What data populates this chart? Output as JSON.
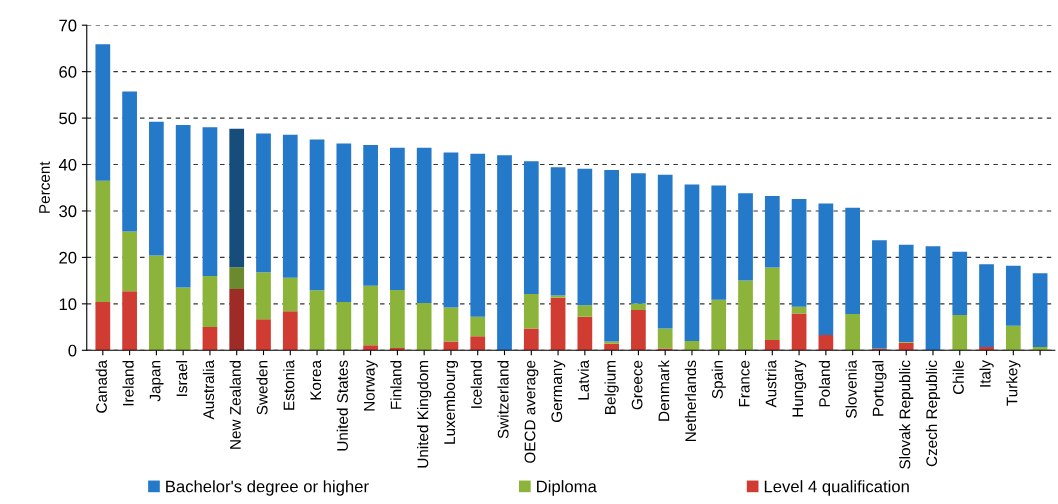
{
  "chart_data": {
    "type": "bar",
    "stacked": true,
    "ylabel": "Percent",
    "categories": [
      "Canada",
      "Ireland",
      "Japan",
      "Israel",
      "Australia",
      "New Zealand",
      "Sweden",
      "Estonia",
      "Korea",
      "United States",
      "Norway",
      "Finland",
      "United Kingdom",
      "Luxembourg",
      "Iceland",
      "Switzerland",
      "OECD average",
      "Germany",
      "Latvia",
      "Belgium",
      "Greece",
      "Denmark",
      "Netherlands",
      "Spain",
      "France",
      "Austria",
      "Hungary",
      "Poland",
      "Slovenia",
      "Portugal",
      "Slovak Republic",
      "Czech Republic",
      "Chile",
      "Italy",
      "Turkey",
      null
    ],
    "series": [
      {
        "name": "Level 4 qualification",
        "color": "#d03b32",
        "colors": [
          "#d03b32",
          "#d03b32",
          "#d03b32",
          "#d03b32",
          "#d03b32",
          "#9e2b26",
          "#d03b32",
          "#d03b32",
          "#d03b32",
          "#d03b32",
          "#d03b32",
          "#d03b32",
          "#d03b32",
          "#d03b32",
          "#d03b32",
          "#d03b32",
          "#d03b32",
          "#d03b32",
          "#d03b32",
          "#d03b32",
          "#d03b32",
          "#d03b32",
          "#d03b32",
          "#d03b32",
          "#d03b32",
          "#d03b32",
          "#d03b32",
          "#d03b32",
          "#d03b32",
          "#d03b32",
          "#d03b32",
          "#d03b32",
          "#d03b32",
          "#d03b32",
          "#d03b32",
          "#d03b32"
        ],
        "values": [
          10.4,
          12.7,
          0,
          0,
          5.0,
          13.2,
          6.7,
          8.4,
          0,
          0,
          1.1,
          0.5,
          0,
          1.9,
          3.0,
          0,
          4.7,
          11.3,
          7.2,
          1.4,
          8.7,
          0.4,
          0,
          0,
          0,
          2.2,
          7.9,
          3.3,
          0,
          0.4,
          1.6,
          0,
          0,
          0.7,
          0,
          0
        ]
      },
      {
        "name": "Diploma",
        "color": "#8cb43a",
        "colors": [
          "#8cb43a",
          "#8cb43a",
          "#8cb43a",
          "#8cb43a",
          "#8cb43a",
          "#6b8a2d",
          "#8cb43a",
          "#8cb43a",
          "#8cb43a",
          "#8cb43a",
          "#8cb43a",
          "#8cb43a",
          "#8cb43a",
          "#8cb43a",
          "#8cb43a",
          "#8cb43a",
          "#8cb43a",
          "#8cb43a",
          "#8cb43a",
          "#8cb43a",
          "#8cb43a",
          "#8cb43a",
          "#8cb43a",
          "#8cb43a",
          "#8cb43a",
          "#8cb43a",
          "#8cb43a",
          "#8cb43a",
          "#8cb43a",
          "#8cb43a",
          "#8cb43a",
          "#8cb43a",
          "#8cb43a",
          "#8cb43a",
          "#8cb43a",
          "#8cb43a"
        ],
        "values": [
          26.1,
          12.9,
          20.4,
          13.5,
          11.0,
          4.7,
          10.1,
          7.2,
          12.9,
          10.4,
          12.8,
          12.5,
          10.2,
          7.3,
          4.2,
          0,
          7.4,
          0.5,
          2.5,
          0.5,
          1.4,
          4.3,
          2.0,
          10.9,
          15.0,
          15.6,
          1.5,
          0,
          7.8,
          0,
          0.2,
          0,
          7.6,
          0,
          5.3,
          0.7
        ]
      },
      {
        "name": "Bachelor's degree or higher",
        "color": "#2479c8",
        "colors": [
          "#2479c8",
          "#2479c8",
          "#2479c8",
          "#2479c8",
          "#2479c8",
          "#164d7a",
          "#2479c8",
          "#2479c8",
          "#2479c8",
          "#2479c8",
          "#2479c8",
          "#2479c8",
          "#2479c8",
          "#2479c8",
          "#2479c8",
          "#2479c8",
          "#2479c8",
          "#2479c8",
          "#2479c8",
          "#2479c8",
          "#2479c8",
          "#2479c8",
          "#2479c8",
          "#2479c8",
          "#2479c8",
          "#2479c8",
          "#2479c8",
          "#2479c8",
          "#2479c8",
          "#2479c8",
          "#2479c8",
          "#2479c8",
          "#2479c8",
          "#2479c8",
          "#2479c8",
          "#2479c8"
        ],
        "values": [
          29.4,
          30.1,
          28.8,
          35.0,
          32.0,
          29.8,
          29.9,
          30.8,
          32.5,
          34.1,
          30.3,
          30.6,
          33.4,
          33.4,
          35.1,
          42.0,
          28.6,
          27.6,
          29.4,
          36.9,
          28.0,
          33.1,
          33.7,
          24.6,
          18.8,
          15.4,
          23.2,
          28.3,
          22.9,
          23.3,
          20.9,
          22.4,
          13.6,
          17.8,
          12.9,
          15.9
        ]
      }
    ],
    "ylim": [
      0,
      70
    ],
    "yticks": [
      0,
      10,
      20,
      30,
      40,
      50,
      60,
      70
    ],
    "grid": "y",
    "legend": "bottom"
  }
}
